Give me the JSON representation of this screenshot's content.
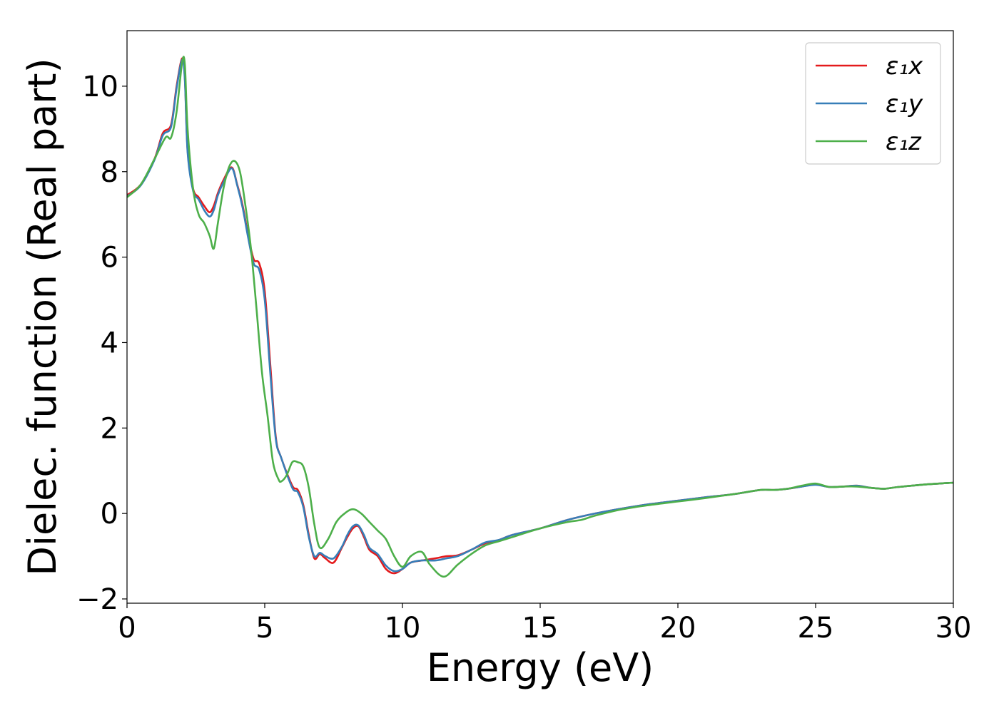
{
  "chart_data": {
    "type": "line",
    "title": "",
    "xlabel": "Energy (eV)",
    "ylabel": "Dielec. function (Real part)",
    "xlim": [
      0,
      30
    ],
    "ylim": [
      -2.1,
      11.3
    ],
    "xticks": [
      0,
      5,
      10,
      15,
      20,
      25,
      30
    ],
    "xtick_labels": [
      "0",
      "5",
      "10",
      "15",
      "20",
      "25",
      "30"
    ],
    "yticks": [
      -2,
      0,
      2,
      4,
      6,
      8,
      10
    ],
    "ytick_labels": [
      "−2",
      "0",
      "2",
      "4",
      "6",
      "8",
      "10"
    ],
    "grid": false,
    "legend": {
      "placement": "top-right"
    },
    "series": [
      {
        "name": "ε₁x",
        "color": "#e41a1c",
        "x": [
          0,
          0.5,
          1.0,
          1.3,
          1.6,
          1.8,
          2.0,
          2.1,
          2.2,
          2.4,
          2.6,
          2.8,
          3.0,
          3.15,
          3.3,
          3.5,
          3.8,
          4.0,
          4.2,
          4.4,
          4.6,
          4.8,
          5.0,
          5.2,
          5.4,
          5.6,
          6.0,
          6.2,
          6.4,
          6.6,
          6.8,
          7.0,
          7.2,
          7.5,
          7.8,
          8.0,
          8.2,
          8.4,
          8.6,
          8.8,
          9.1,
          9.4,
          9.7,
          10.0,
          10.3,
          10.7,
          11.2,
          11.6,
          12.0,
          12.5,
          13.0,
          13.5,
          14.0,
          15.0,
          16.0,
          17.0,
          18.0,
          19.0,
          20.0,
          21.0,
          22.0,
          23.0,
          23.5,
          24.0,
          24.5,
          25.0,
          25.5,
          26.0,
          26.5,
          27.0,
          27.5,
          28.0,
          29.0,
          30.0
        ],
        "y": [
          7.45,
          7.7,
          8.3,
          8.9,
          9.1,
          10.0,
          10.65,
          10.2,
          8.5,
          7.6,
          7.4,
          7.2,
          7.05,
          7.2,
          7.5,
          7.8,
          8.1,
          7.7,
          7.2,
          6.5,
          5.95,
          5.85,
          5.2,
          3.5,
          1.8,
          1.3,
          0.65,
          0.55,
          0.2,
          -0.5,
          -1.05,
          -0.95,
          -1.05,
          -1.15,
          -0.8,
          -0.55,
          -0.35,
          -0.3,
          -0.55,
          -0.85,
          -1.0,
          -1.3,
          -1.4,
          -1.3,
          -1.15,
          -1.1,
          -1.05,
          -1.0,
          -0.98,
          -0.85,
          -0.7,
          -0.62,
          -0.5,
          -0.35,
          -0.15,
          0.0,
          0.12,
          0.22,
          0.3,
          0.38,
          0.45,
          0.55,
          0.55,
          0.58,
          0.63,
          0.68,
          0.62,
          0.63,
          0.65,
          0.6,
          0.58,
          0.62,
          0.68,
          0.72
        ]
      },
      {
        "name": "ε₁y",
        "color": "#377eb8",
        "x": [
          0,
          0.5,
          1.0,
          1.3,
          1.6,
          1.8,
          2.0,
          2.1,
          2.2,
          2.4,
          2.6,
          2.8,
          3.0,
          3.15,
          3.3,
          3.5,
          3.8,
          4.0,
          4.2,
          4.4,
          4.6,
          4.8,
          5.0,
          5.2,
          5.4,
          5.6,
          6.0,
          6.2,
          6.4,
          6.6,
          6.8,
          7.0,
          7.2,
          7.5,
          7.8,
          8.0,
          8.2,
          8.4,
          8.6,
          8.8,
          9.1,
          9.4,
          9.7,
          10.0,
          10.3,
          10.7,
          11.2,
          11.6,
          12.0,
          12.5,
          13.0,
          13.5,
          14.0,
          15.0,
          16.0,
          17.0,
          18.0,
          19.0,
          20.0,
          21.0,
          22.0,
          23.0,
          23.5,
          24.0,
          24.5,
          25.0,
          25.5,
          26.0,
          26.5,
          27.0,
          27.5,
          28.0,
          29.0,
          30.0
        ],
        "y": [
          7.42,
          7.68,
          8.28,
          8.85,
          9.05,
          9.95,
          10.62,
          10.15,
          8.45,
          7.55,
          7.35,
          7.1,
          6.95,
          7.1,
          7.45,
          7.75,
          8.08,
          7.68,
          7.15,
          6.45,
          5.85,
          5.7,
          5.0,
          3.3,
          1.75,
          1.3,
          0.6,
          0.5,
          0.15,
          -0.55,
          -1.0,
          -0.92,
          -1.0,
          -1.05,
          -0.78,
          -0.5,
          -0.3,
          -0.28,
          -0.5,
          -0.8,
          -0.95,
          -1.22,
          -1.35,
          -1.3,
          -1.15,
          -1.1,
          -1.1,
          -1.05,
          -1.0,
          -0.85,
          -0.68,
          -0.62,
          -0.5,
          -0.35,
          -0.15,
          0.0,
          0.12,
          0.22,
          0.3,
          0.38,
          0.45,
          0.55,
          0.55,
          0.58,
          0.63,
          0.67,
          0.62,
          0.63,
          0.65,
          0.6,
          0.58,
          0.62,
          0.68,
          0.72
        ]
      },
      {
        "name": "ε₁z",
        "color": "#4daf4a",
        "x": [
          0,
          0.5,
          1.0,
          1.4,
          1.6,
          1.8,
          2.0,
          2.1,
          2.2,
          2.4,
          2.6,
          2.8,
          3.0,
          3.15,
          3.3,
          3.5,
          3.7,
          3.9,
          4.1,
          4.3,
          4.5,
          4.7,
          4.9,
          5.1,
          5.3,
          5.5,
          5.6,
          5.8,
          6.0,
          6.2,
          6.4,
          6.6,
          6.8,
          7.0,
          7.3,
          7.6,
          7.9,
          8.2,
          8.5,
          8.8,
          9.1,
          9.4,
          9.7,
          10.0,
          10.3,
          10.7,
          11.0,
          11.5,
          12.0,
          12.5,
          13.0,
          13.5,
          14.0,
          15.0,
          16.0,
          16.5,
          17.0,
          18.0,
          19.0,
          20.0,
          21.0,
          22.0,
          23.0,
          23.5,
          24.0,
          24.5,
          25.0,
          25.5,
          26.0,
          26.5,
          27.0,
          27.5,
          28.0,
          29.0,
          30.0
        ],
        "y": [
          7.4,
          7.7,
          8.3,
          8.8,
          8.8,
          9.4,
          10.55,
          10.5,
          9.0,
          7.6,
          7.0,
          6.8,
          6.5,
          6.2,
          6.8,
          7.6,
          8.1,
          8.25,
          8.0,
          7.2,
          6.2,
          4.8,
          3.3,
          2.3,
          1.2,
          0.8,
          0.75,
          0.9,
          1.2,
          1.2,
          1.1,
          0.6,
          -0.25,
          -0.8,
          -0.6,
          -0.2,
          0.0,
          0.1,
          0.0,
          -0.2,
          -0.4,
          -0.6,
          -1.0,
          -1.25,
          -1.0,
          -0.9,
          -1.2,
          -1.48,
          -1.2,
          -0.95,
          -0.75,
          -0.65,
          -0.55,
          -0.35,
          -0.2,
          -0.15,
          -0.05,
          0.1,
          0.2,
          0.28,
          0.36,
          0.45,
          0.55,
          0.55,
          0.58,
          0.65,
          0.7,
          0.62,
          0.63,
          0.63,
          0.6,
          0.58,
          0.62,
          0.68,
          0.72
        ]
      }
    ]
  }
}
